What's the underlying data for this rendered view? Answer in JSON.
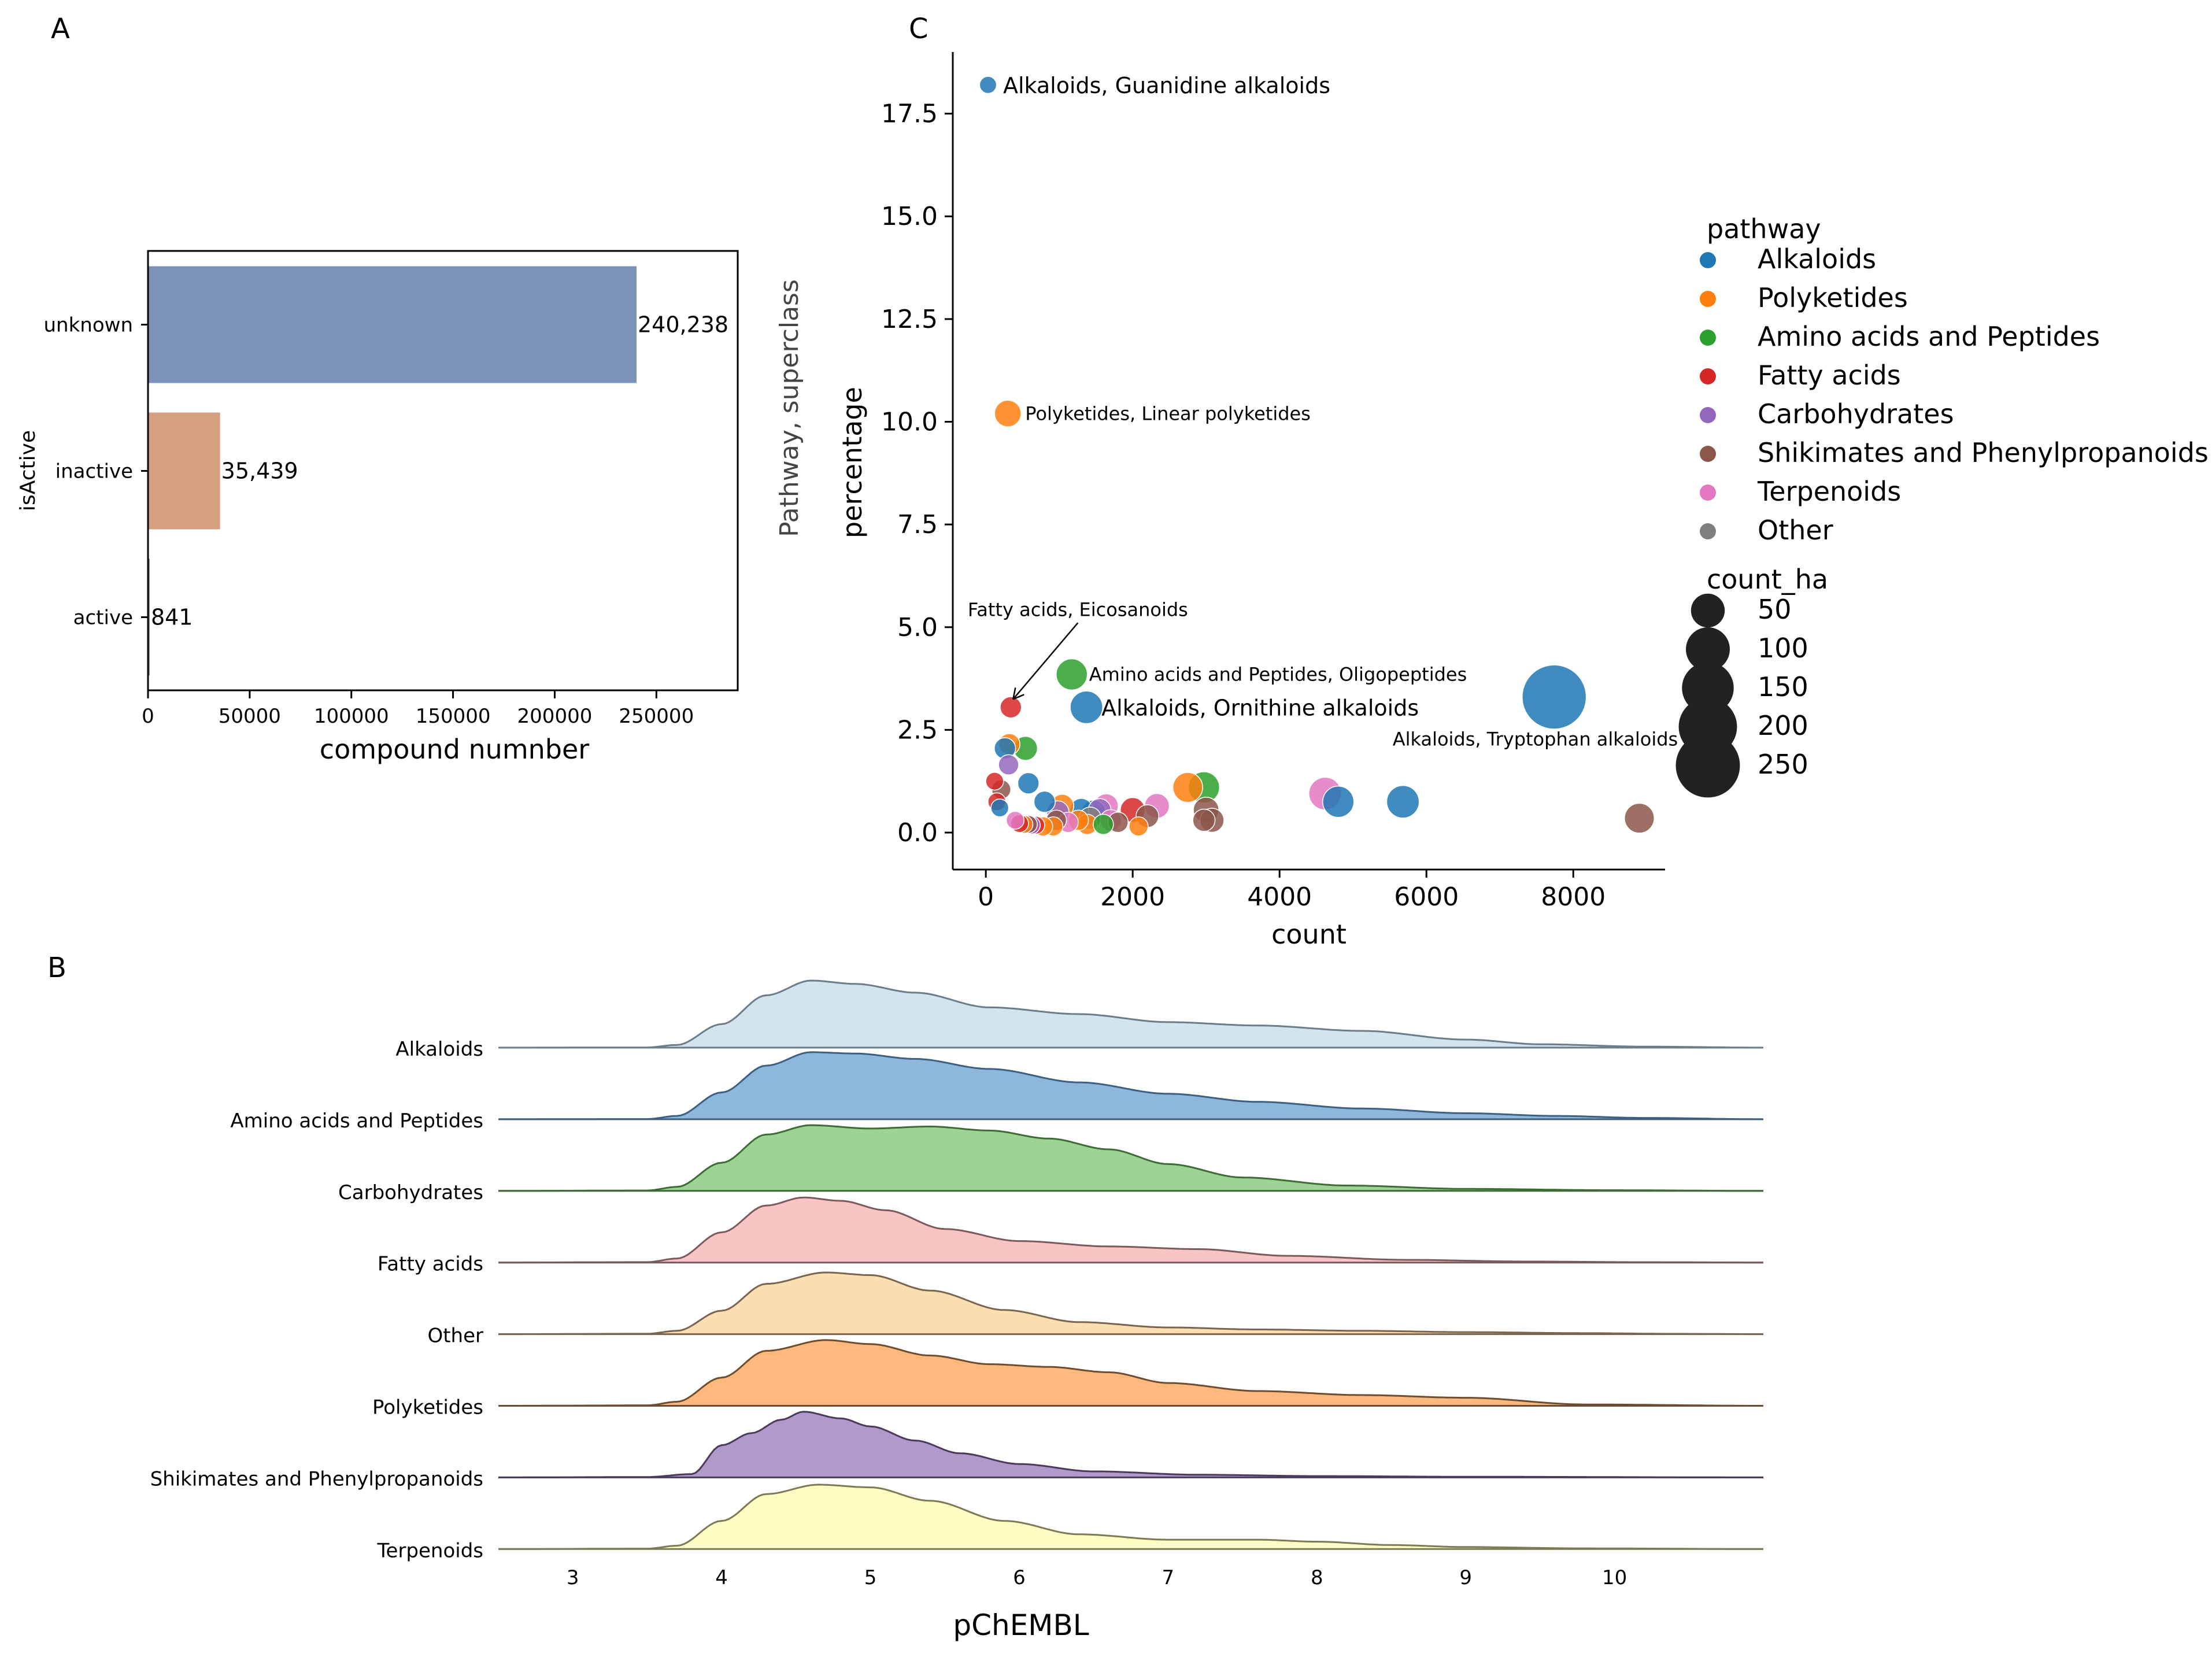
{
  "panels": {
    "a": "A",
    "b": "B",
    "c": "C"
  },
  "chart_data": [
    {
      "id": "A",
      "type": "bar",
      "orientation": "horizontal",
      "categories": [
        "unknown",
        "inactive",
        "active"
      ],
      "values": [
        240238,
        35439,
        841
      ],
      "value_labels": [
        "240,238",
        "35,439",
        "841"
      ],
      "colors": [
        "#7b93b9",
        "#d4a080",
        "#8c8c8c"
      ],
      "xlabel": "compound numnber",
      "ylabel": "isActive",
      "xlim": [
        0,
        290000
      ],
      "xticks": [
        0,
        50000,
        100000,
        150000,
        200000,
        250000
      ],
      "xtick_labels": [
        "0",
        "50000",
        "100000",
        "150000",
        "200000",
        "250000"
      ]
    },
    {
      "id": "C",
      "type": "scatter",
      "xlabel": "count",
      "ylabel": "percentage",
      "ylabel_outer": "Pathway, superclass",
      "xlim": [
        -450,
        9250
      ],
      "ylim": [
        -0.9,
        19.0
      ],
      "xticks": [
        0,
        2000,
        4000,
        6000,
        8000
      ],
      "xtick_labels": [
        "0",
        "2000",
        "4000",
        "6000",
        "8000"
      ],
      "yticks": [
        0,
        2.5,
        5,
        7.5,
        10,
        12.5,
        15,
        17.5
      ],
      "ytick_labels": [
        "0.0",
        "2.5",
        "5.0",
        "7.5",
        "10.0",
        "12.5",
        "15.0",
        "17.5"
      ],
      "legend": {
        "hue_title": "pathway",
        "hue": [
          {
            "name": "Alkaloids",
            "color": "#1f77b4"
          },
          {
            "name": "Polyketides",
            "color": "#ff7f0e"
          },
          {
            "name": "Amino acids and Peptides",
            "color": "#2ca02c"
          },
          {
            "name": "Fatty acids",
            "color": "#d62728"
          },
          {
            "name": "Carbohydrates",
            "color": "#9467bd"
          },
          {
            "name": "Shikimates and Phenylpropanoids",
            "color": "#8c564b"
          },
          {
            "name": "Terpenoids",
            "color": "#e377c2"
          },
          {
            "name": "Other",
            "color": "#7f7f7f"
          }
        ],
        "size_title": "count_ha",
        "sizes": [
          50,
          100,
          150,
          200,
          250
        ],
        "size_labels": [
          "50",
          "100",
          "150",
          "200",
          "250"
        ]
      },
      "annotations": [
        {
          "text": "Alkaloids, Guanidine alkaloids",
          "x": 30,
          "y": 18.2,
          "style": "big"
        },
        {
          "text": "Polyketides, Linear polyketides",
          "x": 300,
          "y": 10.2,
          "style": "small"
        },
        {
          "text": "Fatty acids, Eicosanoids",
          "x": 340,
          "y": 3.05,
          "style": "arrow"
        },
        {
          "text": "Amino acids and Peptides, Oligopeptides",
          "x": 1170,
          "y": 3.85,
          "style": "small"
        },
        {
          "text": "Alkaloids, Ornithine alkaloids",
          "x": 1370,
          "y": 3.05,
          "style": "big"
        },
        {
          "text": "Alkaloids, Tryptophan alkaloids",
          "x": 7740,
          "y": 3.3,
          "style": "small-below"
        }
      ],
      "points": [
        {
          "x": 30,
          "y": 18.2,
          "pathway": "Alkaloids",
          "count_ha": 5
        },
        {
          "x": 300,
          "y": 10.2,
          "pathway": "Polyketides",
          "count_ha": 25
        },
        {
          "x": 340,
          "y": 3.05,
          "pathway": "Fatty acids",
          "count_ha": 12
        },
        {
          "x": 1170,
          "y": 3.85,
          "pathway": "Amino acids and Peptides",
          "count_ha": 40
        },
        {
          "x": 1370,
          "y": 3.05,
          "pathway": "Alkaloids",
          "count_ha": 45
        },
        {
          "x": 7740,
          "y": 3.3,
          "pathway": "Alkaloids",
          "count_ha": 250
        },
        {
          "x": 8900,
          "y": 0.35,
          "pathway": "Shikimates and Phenylpropanoids",
          "count_ha": 35
        },
        {
          "x": 5680,
          "y": 0.75,
          "pathway": "Alkaloids",
          "count_ha": 45
        },
        {
          "x": 4800,
          "y": 0.75,
          "pathway": "Alkaloids",
          "count_ha": 40
        },
        {
          "x": 4620,
          "y": 0.95,
          "pathway": "Terpenoids",
          "count_ha": 45
        },
        {
          "x": 2970,
          "y": 1.1,
          "pathway": "Amino acids and Peptides",
          "count_ha": 40
        },
        {
          "x": 2750,
          "y": 1.1,
          "pathway": "Polyketides",
          "count_ha": 35
        },
        {
          "x": 3000,
          "y": 0.55,
          "pathway": "Shikimates and Phenylpropanoids",
          "count_ha": 22
        },
        {
          "x": 3080,
          "y": 0.3,
          "pathway": "Shikimates and Phenylpropanoids",
          "count_ha": 18
        },
        {
          "x": 2970,
          "y": 0.3,
          "pathway": "Shikimates and Phenylpropanoids",
          "count_ha": 14
        },
        {
          "x": 2330,
          "y": 0.65,
          "pathway": "Terpenoids",
          "count_ha": 20
        },
        {
          "x": 2200,
          "y": 0.4,
          "pathway": "Shikimates and Phenylpropanoids",
          "count_ha": 15
        },
        {
          "x": 2000,
          "y": 0.55,
          "pathway": "Fatty acids",
          "count_ha": 20
        },
        {
          "x": 1800,
          "y": 0.25,
          "pathway": "Shikimates and Phenylpropanoids",
          "count_ha": 10
        },
        {
          "x": 1640,
          "y": 0.65,
          "pathway": "Terpenoids",
          "count_ha": 18
        },
        {
          "x": 1550,
          "y": 0.55,
          "pathway": "Carbohydrates",
          "count_ha": 15
        },
        {
          "x": 1470,
          "y": 0.5,
          "pathway": "Alkaloids",
          "count_ha": 18
        },
        {
          "x": 1420,
          "y": 0.35,
          "pathway": "Other",
          "count_ha": 14
        },
        {
          "x": 1300,
          "y": 0.55,
          "pathway": "Alkaloids",
          "count_ha": 16
        },
        {
          "x": 1380,
          "y": 0.2,
          "pathway": "Polyketides",
          "count_ha": 10
        },
        {
          "x": 1600,
          "y": 0.2,
          "pathway": "Amino acids and Peptides",
          "count_ha": 10
        },
        {
          "x": 1700,
          "y": 0.3,
          "pathway": "Terpenoids",
          "count_ha": 12
        },
        {
          "x": 2080,
          "y": 0.15,
          "pathway": "Polyketides",
          "count_ha": 8
        },
        {
          "x": 1260,
          "y": 0.3,
          "pathway": "Polyketides",
          "count_ha": 10
        },
        {
          "x": 1120,
          "y": 0.25,
          "pathway": "Terpenoids",
          "count_ha": 10
        },
        {
          "x": 1040,
          "y": 0.65,
          "pathway": "Polyketides",
          "count_ha": 16
        },
        {
          "x": 980,
          "y": 0.5,
          "pathway": "Carbohydrates",
          "count_ha": 14
        },
        {
          "x": 960,
          "y": 0.3,
          "pathway": "Shikimates and Phenylpropanoids",
          "count_ha": 10
        },
        {
          "x": 920,
          "y": 0.15,
          "pathway": "Polyketides",
          "count_ha": 8
        },
        {
          "x": 800,
          "y": 0.75,
          "pathway": "Alkaloids",
          "count_ha": 12
        },
        {
          "x": 780,
          "y": 0.15,
          "pathway": "Polyketides",
          "count_ha": 8
        },
        {
          "x": 680,
          "y": 0.18,
          "pathway": "Fatty acids",
          "count_ha": 6
        },
        {
          "x": 620,
          "y": 0.18,
          "pathway": "Carbohydrates",
          "count_ha": 6
        },
        {
          "x": 580,
          "y": 0.2,
          "pathway": "Shikimates and Phenylpropanoids",
          "count_ha": 6
        },
        {
          "x": 520,
          "y": 0.2,
          "pathway": "Polyketides",
          "count_ha": 6
        },
        {
          "x": 460,
          "y": 0.22,
          "pathway": "Fatty acids",
          "count_ha": 6
        },
        {
          "x": 400,
          "y": 0.3,
          "pathway": "Terpenoids",
          "count_ha": 6
        },
        {
          "x": 580,
          "y": 1.2,
          "pathway": "Alkaloids",
          "count_ha": 12
        },
        {
          "x": 540,
          "y": 2.05,
          "pathway": "Amino acids and Peptides",
          "count_ha": 18
        },
        {
          "x": 320,
          "y": 2.15,
          "pathway": "Polyketides",
          "count_ha": 12
        },
        {
          "x": 260,
          "y": 2.05,
          "pathway": "Alkaloids",
          "count_ha": 12
        },
        {
          "x": 310,
          "y": 1.65,
          "pathway": "Carbohydrates",
          "count_ha": 10
        },
        {
          "x": 210,
          "y": 1.05,
          "pathway": "Shikimates and Phenylpropanoids",
          "count_ha": 8
        },
        {
          "x": 120,
          "y": 1.25,
          "pathway": "Fatty acids",
          "count_ha": 6
        },
        {
          "x": 150,
          "y": 0.75,
          "pathway": "Fatty acids",
          "count_ha": 6
        },
        {
          "x": 190,
          "y": 0.6,
          "pathway": "Alkaloids",
          "count_ha": 6
        }
      ]
    },
    {
      "id": "B",
      "type": "area",
      "subtype": "ridgeline",
      "xlabel": "pChEMBL",
      "xlim": [
        2.5,
        11.0
      ],
      "xticks": [
        3,
        4,
        5,
        6,
        7,
        8,
        9,
        10
      ],
      "xtick_labels": [
        "3",
        "4",
        "5",
        "6",
        "7",
        "8",
        "9",
        "10"
      ],
      "series": [
        {
          "name": "Alkaloids",
          "fill": "#d3e4ee",
          "line": "#6b7c8a",
          "x": [
            2.5,
            3.5,
            3.7,
            4.0,
            4.3,
            4.6,
            4.9,
            5.3,
            5.8,
            6.4,
            7.0,
            7.6,
            8.3,
            9.0,
            9.5,
            10.2,
            11.0
          ],
          "y": [
            0.0,
            0.003,
            0.04,
            0.35,
            0.78,
            1.0,
            0.95,
            0.82,
            0.6,
            0.5,
            0.38,
            0.33,
            0.25,
            0.12,
            0.05,
            0.015,
            0.0
          ]
        },
        {
          "name": "Amino acids and Peptides",
          "fill": "#8db8dc",
          "line": "#3d5f80",
          "x": [
            2.5,
            3.5,
            3.7,
            4.0,
            4.3,
            4.6,
            4.9,
            5.3,
            5.8,
            6.4,
            7.0,
            7.6,
            8.3,
            9.0,
            9.6,
            10.2,
            11.0
          ],
          "y": [
            0.0,
            0.003,
            0.05,
            0.4,
            0.8,
            1.0,
            0.98,
            0.9,
            0.75,
            0.55,
            0.38,
            0.26,
            0.16,
            0.09,
            0.05,
            0.02,
            0.0
          ]
        },
        {
          "name": "Carbohydrates",
          "fill": "#9ed396",
          "line": "#3e6b36",
          "x": [
            2.5,
            3.5,
            3.7,
            4.0,
            4.3,
            4.6,
            5.0,
            5.4,
            5.8,
            6.2,
            6.6,
            7.0,
            7.5,
            8.2,
            9.0,
            10.0,
            11.0
          ],
          "y": [
            0.0,
            0.006,
            0.06,
            0.42,
            0.84,
            0.98,
            0.93,
            0.96,
            0.9,
            0.78,
            0.62,
            0.4,
            0.2,
            0.08,
            0.03,
            0.01,
            0.0
          ]
        },
        {
          "name": "Fatty acids",
          "fill": "#f8c4c4",
          "line": "#7a5a5a",
          "x": [
            2.5,
            3.5,
            3.7,
            4.0,
            4.3,
            4.55,
            4.8,
            5.1,
            5.5,
            6.0,
            6.6,
            7.2,
            7.8,
            8.6,
            9.4,
            10.2,
            11.0
          ],
          "y": [
            0.0,
            0.006,
            0.06,
            0.45,
            0.85,
            0.97,
            0.92,
            0.78,
            0.5,
            0.32,
            0.24,
            0.2,
            0.1,
            0.04,
            0.015,
            0.005,
            0.0
          ]
        },
        {
          "name": "Other",
          "fill": "#fbdfb2",
          "line": "#7a6450",
          "x": [
            2.5,
            3.5,
            3.7,
            4.0,
            4.3,
            4.7,
            5.0,
            5.4,
            5.9,
            6.4,
            7.0,
            7.6,
            8.3,
            9.0,
            9.8,
            10.4,
            11.0
          ],
          "y": [
            0.0,
            0.006,
            0.05,
            0.35,
            0.75,
            0.92,
            0.88,
            0.65,
            0.36,
            0.18,
            0.1,
            0.07,
            0.05,
            0.03,
            0.015,
            0.005,
            0.0
          ]
        },
        {
          "name": "Polyketides",
          "fill": "#fdb97d",
          "line": "#6e4c2e",
          "x": [
            2.5,
            3.5,
            3.7,
            4.0,
            4.3,
            4.7,
            5.0,
            5.4,
            5.8,
            6.2,
            6.6,
            7.0,
            7.6,
            8.3,
            9.0,
            9.8,
            11.0
          ],
          "y": [
            0.0,
            0.006,
            0.06,
            0.42,
            0.82,
            0.98,
            0.92,
            0.75,
            0.62,
            0.58,
            0.5,
            0.34,
            0.22,
            0.16,
            0.12,
            0.02,
            0.0
          ]
        },
        {
          "name": "Shikimates and Phenylpropanoids",
          "fill": "#b09acc",
          "line": "#4a3a5c",
          "x": [
            2.5,
            3.5,
            3.8,
            4.0,
            4.2,
            4.4,
            4.55,
            4.8,
            5.0,
            5.3,
            5.6,
            6.0,
            6.5,
            7.2,
            8.0,
            9.0,
            11.0
          ],
          "y": [
            0.0,
            0.006,
            0.05,
            0.48,
            0.66,
            0.86,
            0.98,
            0.88,
            0.76,
            0.55,
            0.36,
            0.2,
            0.09,
            0.04,
            0.02,
            0.01,
            0.0
          ]
        },
        {
          "name": "Terpenoids",
          "fill": "#fdfdc4",
          "line": "#7a7a54",
          "x": [
            2.5,
            3.5,
            3.7,
            4.0,
            4.3,
            4.65,
            5.0,
            5.4,
            5.9,
            6.4,
            7.0,
            7.6,
            8.0,
            8.5,
            9.0,
            9.8,
            11.0
          ],
          "y": [
            0.0,
            0.006,
            0.05,
            0.42,
            0.82,
            0.96,
            0.92,
            0.72,
            0.42,
            0.22,
            0.14,
            0.14,
            0.11,
            0.06,
            0.03,
            0.01,
            0.0
          ]
        }
      ]
    }
  ]
}
